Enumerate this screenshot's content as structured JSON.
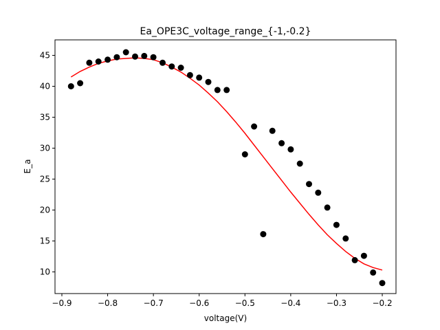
{
  "chart_data": {
    "type": "scatter",
    "title": "Ea_OPE3C_voltage_range_{-1,-0.2}",
    "xlabel": "voltage(V)",
    "ylabel": "E_a",
    "xlim": [
      -0.915,
      -0.17
    ],
    "ylim": [
      6.5,
      47.5
    ],
    "x_ticks": [
      -0.9,
      -0.8,
      -0.7,
      -0.6,
      -0.5,
      -0.4,
      -0.3,
      -0.2
    ],
    "x_tick_labels": [
      "−0.9",
      "−0.8",
      "−0.7",
      "−0.6",
      "−0.5",
      "−0.4",
      "−0.3",
      "−0.2"
    ],
    "y_ticks": [
      10,
      15,
      20,
      25,
      30,
      35,
      40,
      45
    ],
    "y_tick_labels": [
      "10",
      "15",
      "20",
      "25",
      "30",
      "35",
      "40",
      "45"
    ],
    "grid": false,
    "series": [
      {
        "kind": "scatter",
        "color": "#000000",
        "x": [
          -0.88,
          -0.86,
          -0.84,
          -0.82,
          -0.8,
          -0.78,
          -0.76,
          -0.74,
          -0.72,
          -0.7,
          -0.68,
          -0.66,
          -0.64,
          -0.62,
          -0.6,
          -0.58,
          -0.56,
          -0.54,
          -0.5,
          -0.48,
          -0.46,
          -0.44,
          -0.42,
          -0.4,
          -0.38,
          -0.36,
          -0.34,
          -0.32,
          -0.3,
          -0.28,
          -0.26,
          -0.24,
          -0.22,
          -0.2
        ],
        "y": [
          40.0,
          40.5,
          43.8,
          44.0,
          44.3,
          44.7,
          45.5,
          44.8,
          44.9,
          44.7,
          43.8,
          43.2,
          43.0,
          41.8,
          41.4,
          40.7,
          39.4,
          39.4,
          29.0,
          33.5,
          16.1,
          32.8,
          30.8,
          29.8,
          27.5,
          24.2,
          22.8,
          20.4,
          17.6,
          15.4,
          11.9,
          12.6,
          9.9,
          8.2
        ]
      },
      {
        "kind": "line",
        "color": "#ff0000",
        "x": [
          -0.88,
          -0.86,
          -0.84,
          -0.82,
          -0.8,
          -0.78,
          -0.76,
          -0.74,
          -0.72,
          -0.7,
          -0.68,
          -0.66,
          -0.64,
          -0.62,
          -0.6,
          -0.58,
          -0.56,
          -0.54,
          -0.52,
          -0.5,
          -0.48,
          -0.46,
          -0.44,
          -0.42,
          -0.4,
          -0.38,
          -0.36,
          -0.34,
          -0.32,
          -0.3,
          -0.28,
          -0.26,
          -0.24,
          -0.22,
          -0.2
        ],
        "y": [
          41.5,
          42.4,
          43.1,
          43.7,
          44.1,
          44.4,
          44.5,
          44.6,
          44.5,
          44.3,
          43.8,
          43.1,
          42.3,
          41.3,
          40.2,
          38.9,
          37.5,
          35.9,
          34.2,
          32.4,
          30.5,
          28.6,
          26.7,
          24.8,
          22.9,
          21.1,
          19.3,
          17.6,
          16.0,
          14.6,
          13.3,
          12.2,
          11.3,
          10.7,
          10.3
        ]
      }
    ]
  }
}
